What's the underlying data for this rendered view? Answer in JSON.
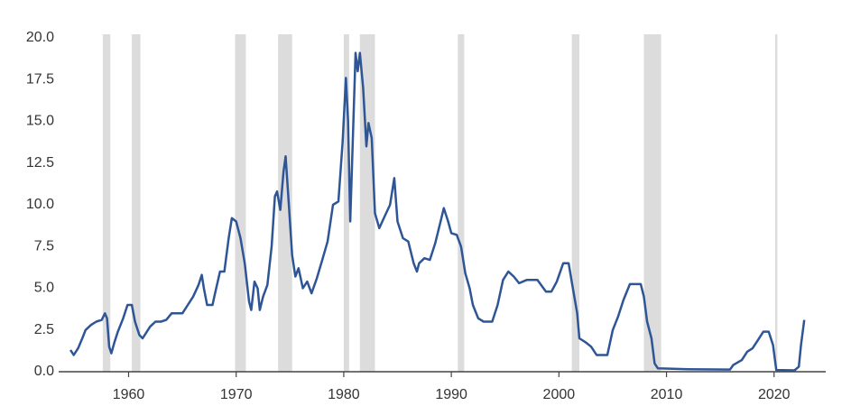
{
  "chart_data": {
    "type": "line",
    "xlim": [
      1953.5,
      2024.8
    ],
    "ylim": [
      0,
      20
    ],
    "xticks": [
      1960,
      1970,
      1980,
      1990,
      2000,
      2010,
      2020
    ],
    "yticks": [
      {
        "value": 0,
        "label": "0.0"
      },
      {
        "value": 2.5,
        "label": "2.5"
      },
      {
        "value": 5,
        "label": "5.0"
      },
      {
        "value": 7.5,
        "label": "7.5"
      },
      {
        "value": 10,
        "label": "10.0"
      },
      {
        "value": 12.5,
        "label": "12.5"
      },
      {
        "value": 15,
        "label": "15.0"
      },
      {
        "value": 17.5,
        "label": "17.5"
      },
      {
        "value": 20,
        "label": "20.0"
      }
    ],
    "recession_color": "#dcdcdc",
    "recessions": [
      [
        1957.6,
        1958.3
      ],
      [
        1960.3,
        1961.1
      ],
      [
        1969.9,
        1970.9
      ],
      [
        1973.9,
        1975.2
      ],
      [
        1980.0,
        1980.5
      ],
      [
        1981.5,
        1982.9
      ],
      [
        1990.6,
        1991.2
      ],
      [
        2001.2,
        2001.9
      ],
      [
        2007.9,
        2009.5
      ],
      [
        2020.1,
        2020.3
      ]
    ],
    "series": [
      {
        "color": "#2e5596",
        "x": [
          1954.6,
          1954.9,
          1955.3,
          1955.7,
          1956.0,
          1956.5,
          1957.0,
          1957.5,
          1957.8,
          1958.0,
          1958.2,
          1958.4,
          1958.7,
          1959.0,
          1959.5,
          1959.9,
          1960.3,
          1960.6,
          1961.0,
          1961.3,
          1961.6,
          1962.0,
          1962.5,
          1963.0,
          1963.5,
          1964.0,
          1965.0,
          1965.5,
          1966.0,
          1966.5,
          1966.8,
          1967.0,
          1967.3,
          1967.8,
          1968.0,
          1968.5,
          1968.9,
          1969.3,
          1969.6,
          1970.0,
          1970.4,
          1970.8,
          1971.2,
          1971.4,
          1971.7,
          1972.0,
          1972.2,
          1972.5,
          1972.9,
          1973.3,
          1973.6,
          1973.8,
          1974.1,
          1974.4,
          1974.6,
          1974.9,
          1975.2,
          1975.5,
          1975.8,
          1976.2,
          1976.6,
          1977.0,
          1977.5,
          1978.0,
          1978.5,
          1979.0,
          1979.5,
          1979.9,
          1980.2,
          1980.4,
          1980.6,
          1980.9,
          1981.1,
          1981.3,
          1981.5,
          1981.8,
          1982.1,
          1982.3,
          1982.6,
          1982.9,
          1983.3,
          1983.8,
          1984.3,
          1984.7,
          1985.0,
          1985.5,
          1986.0,
          1986.5,
          1986.8,
          1987.0,
          1987.5,
          1988.0,
          1988.5,
          1989.0,
          1989.3,
          1989.7,
          1990.0,
          1990.5,
          1990.9,
          1991.3,
          1991.7,
          1992.0,
          1992.5,
          1993.0,
          1993.8,
          1994.3,
          1994.8,
          1995.3,
          1995.8,
          1996.3,
          1997.0,
          1998.0,
          1998.8,
          1999.3,
          1999.8,
          2000.4,
          2000.9,
          2001.3,
          2001.7,
          2001.9,
          2002.5,
          2003.0,
          2003.5,
          2004.5,
          2005.0,
          2005.5,
          2006.0,
          2006.6,
          2007.6,
          2007.9,
          2008.2,
          2008.6,
          2008.9,
          2009.2,
          2012.0,
          2015.9,
          2016.2,
          2017.0,
          2017.5,
          2018.0,
          2018.5,
          2019.0,
          2019.5,
          2019.9,
          2020.2,
          2021.9,
          2022.3,
          2022.5,
          2022.8
        ],
        "values": [
          1.3,
          1.0,
          1.4,
          2.0,
          2.5,
          2.8,
          3.0,
          3.1,
          3.5,
          3.2,
          1.5,
          1.1,
          1.8,
          2.4,
          3.2,
          4.0,
          4.0,
          3.0,
          2.2,
          2.0,
          2.3,
          2.7,
          3.0,
          3.0,
          3.1,
          3.5,
          3.5,
          4.0,
          4.5,
          5.2,
          5.8,
          5.0,
          4.0,
          4.0,
          4.6,
          6.0,
          6.0,
          8.0,
          9.2,
          9.0,
          8.0,
          6.5,
          4.2,
          3.7,
          5.4,
          5.0,
          3.7,
          4.5,
          5.2,
          7.5,
          10.5,
          10.8,
          9.7,
          12.0,
          12.9,
          10.0,
          7.0,
          5.7,
          6.2,
          5.0,
          5.4,
          4.7,
          5.6,
          6.7,
          7.8,
          10.0,
          10.2,
          13.8,
          17.6,
          15.0,
          9.0,
          15.0,
          19.1,
          18.0,
          19.1,
          17.0,
          13.5,
          14.9,
          14.0,
          9.5,
          8.6,
          9.3,
          10.0,
          11.6,
          9.0,
          8.0,
          7.8,
          6.5,
          6.0,
          6.5,
          6.8,
          6.7,
          7.7,
          9.0,
          9.8,
          9.0,
          8.3,
          8.2,
          7.5,
          5.9,
          5.0,
          4.0,
          3.2,
          3.0,
          3.0,
          4.0,
          5.5,
          6.0,
          5.7,
          5.3,
          5.5,
          5.5,
          4.8,
          4.8,
          5.4,
          6.5,
          6.5,
          5.0,
          3.5,
          2.0,
          1.75,
          1.5,
          1.0,
          1.0,
          2.5,
          3.3,
          4.3,
          5.25,
          5.25,
          4.5,
          3.0,
          2.0,
          0.5,
          0.2,
          0.15,
          0.13,
          0.4,
          0.7,
          1.2,
          1.4,
          1.9,
          2.4,
          2.4,
          1.6,
          0.1,
          0.08,
          0.3,
          1.6,
          3.1
        ]
      }
    ]
  }
}
